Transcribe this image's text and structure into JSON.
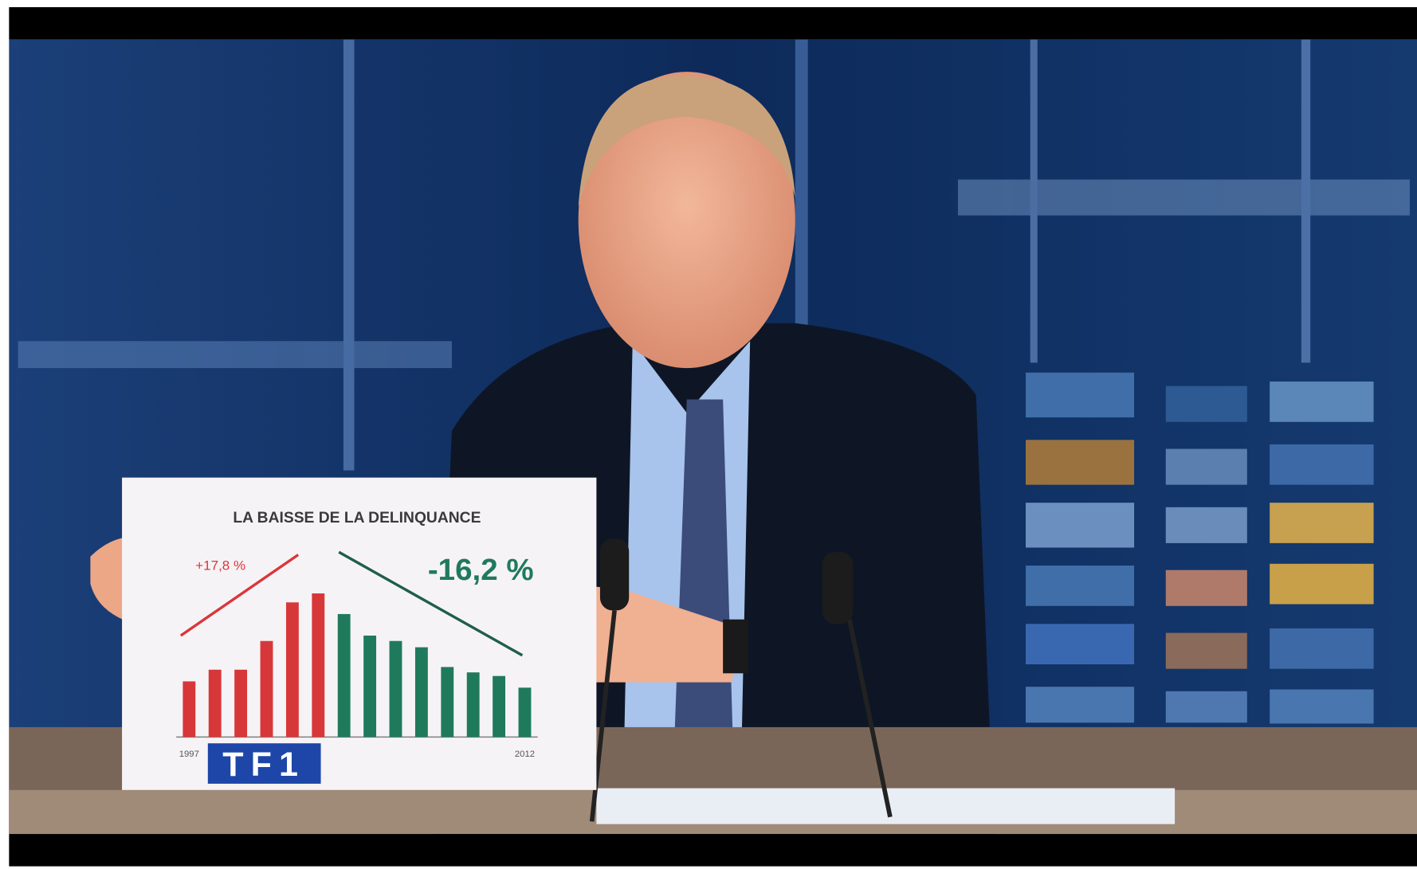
{
  "chart_data": {
    "type": "bar",
    "title": "LA BAISSE DE LA DELINQUANCE",
    "categories": [
      "1997",
      null,
      null,
      null,
      null,
      null,
      null,
      null,
      null,
      null,
      null,
      null,
      null,
      "2012"
    ],
    "series": [
      {
        "color": "#d8373a",
        "values": [
          62,
          75,
          75,
          107,
          150,
          160,
          null,
          null,
          null,
          null,
          null,
          null,
          null,
          null
        ]
      },
      {
        "color": "#1f7a5c",
        "values": [
          null,
          null,
          null,
          null,
          null,
          null,
          137,
          113,
          107,
          100,
          78,
          72,
          68,
          55
        ]
      }
    ],
    "annotations": [
      "+17,8 %",
      "-16,2 %"
    ]
  },
  "logo": "TF1"
}
